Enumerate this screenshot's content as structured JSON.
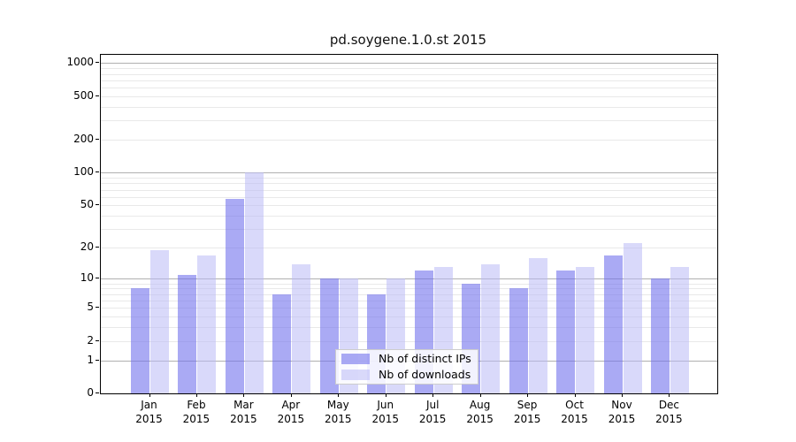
{
  "chart_data": {
    "type": "bar",
    "title": "pd.soygene.1.0.st 2015",
    "categories": [
      "Jan",
      "Feb",
      "Mar",
      "Apr",
      "May",
      "Jun",
      "Jul",
      "Aug",
      "Sep",
      "Oct",
      "Nov",
      "Dec"
    ],
    "x_tick_second_line": "2015",
    "series": [
      {
        "name": "Nb of distinct IPs",
        "color": "rgba(113,113,236,0.6)",
        "values": [
          8,
          11,
          58,
          7,
          10,
          7,
          12,
          9,
          8,
          12,
          17,
          10
        ]
      },
      {
        "name": "Nb of downloads",
        "color": "rgba(185,185,246,0.55)",
        "values": [
          19,
          17,
          100,
          14,
          10,
          10,
          13,
          14,
          16,
          13,
          22,
          13
        ]
      }
    ],
    "y_axis": {
      "scale": "log1p",
      "labeled_ticks": [
        0,
        1,
        2,
        5,
        10,
        20,
        50,
        100,
        200,
        500,
        1000
      ],
      "major_gridlines": [
        1,
        10,
        100,
        1000
      ],
      "minor_gridlines": [
        2,
        3,
        4,
        5,
        6,
        7,
        8,
        9,
        20,
        30,
        40,
        50,
        60,
        70,
        80,
        90,
        200,
        300,
        400,
        500,
        600,
        700,
        800,
        900
      ],
      "top_value": 1192
    },
    "legend": {
      "position": "bottom-center"
    },
    "grid": true
  },
  "colors": {
    "background": "#ffffff",
    "spine": "#000000",
    "major_grid": "#b0b0b0",
    "minor_grid": "#e9e9e9",
    "text": "#111111",
    "legend_border": "#cccccc"
  }
}
